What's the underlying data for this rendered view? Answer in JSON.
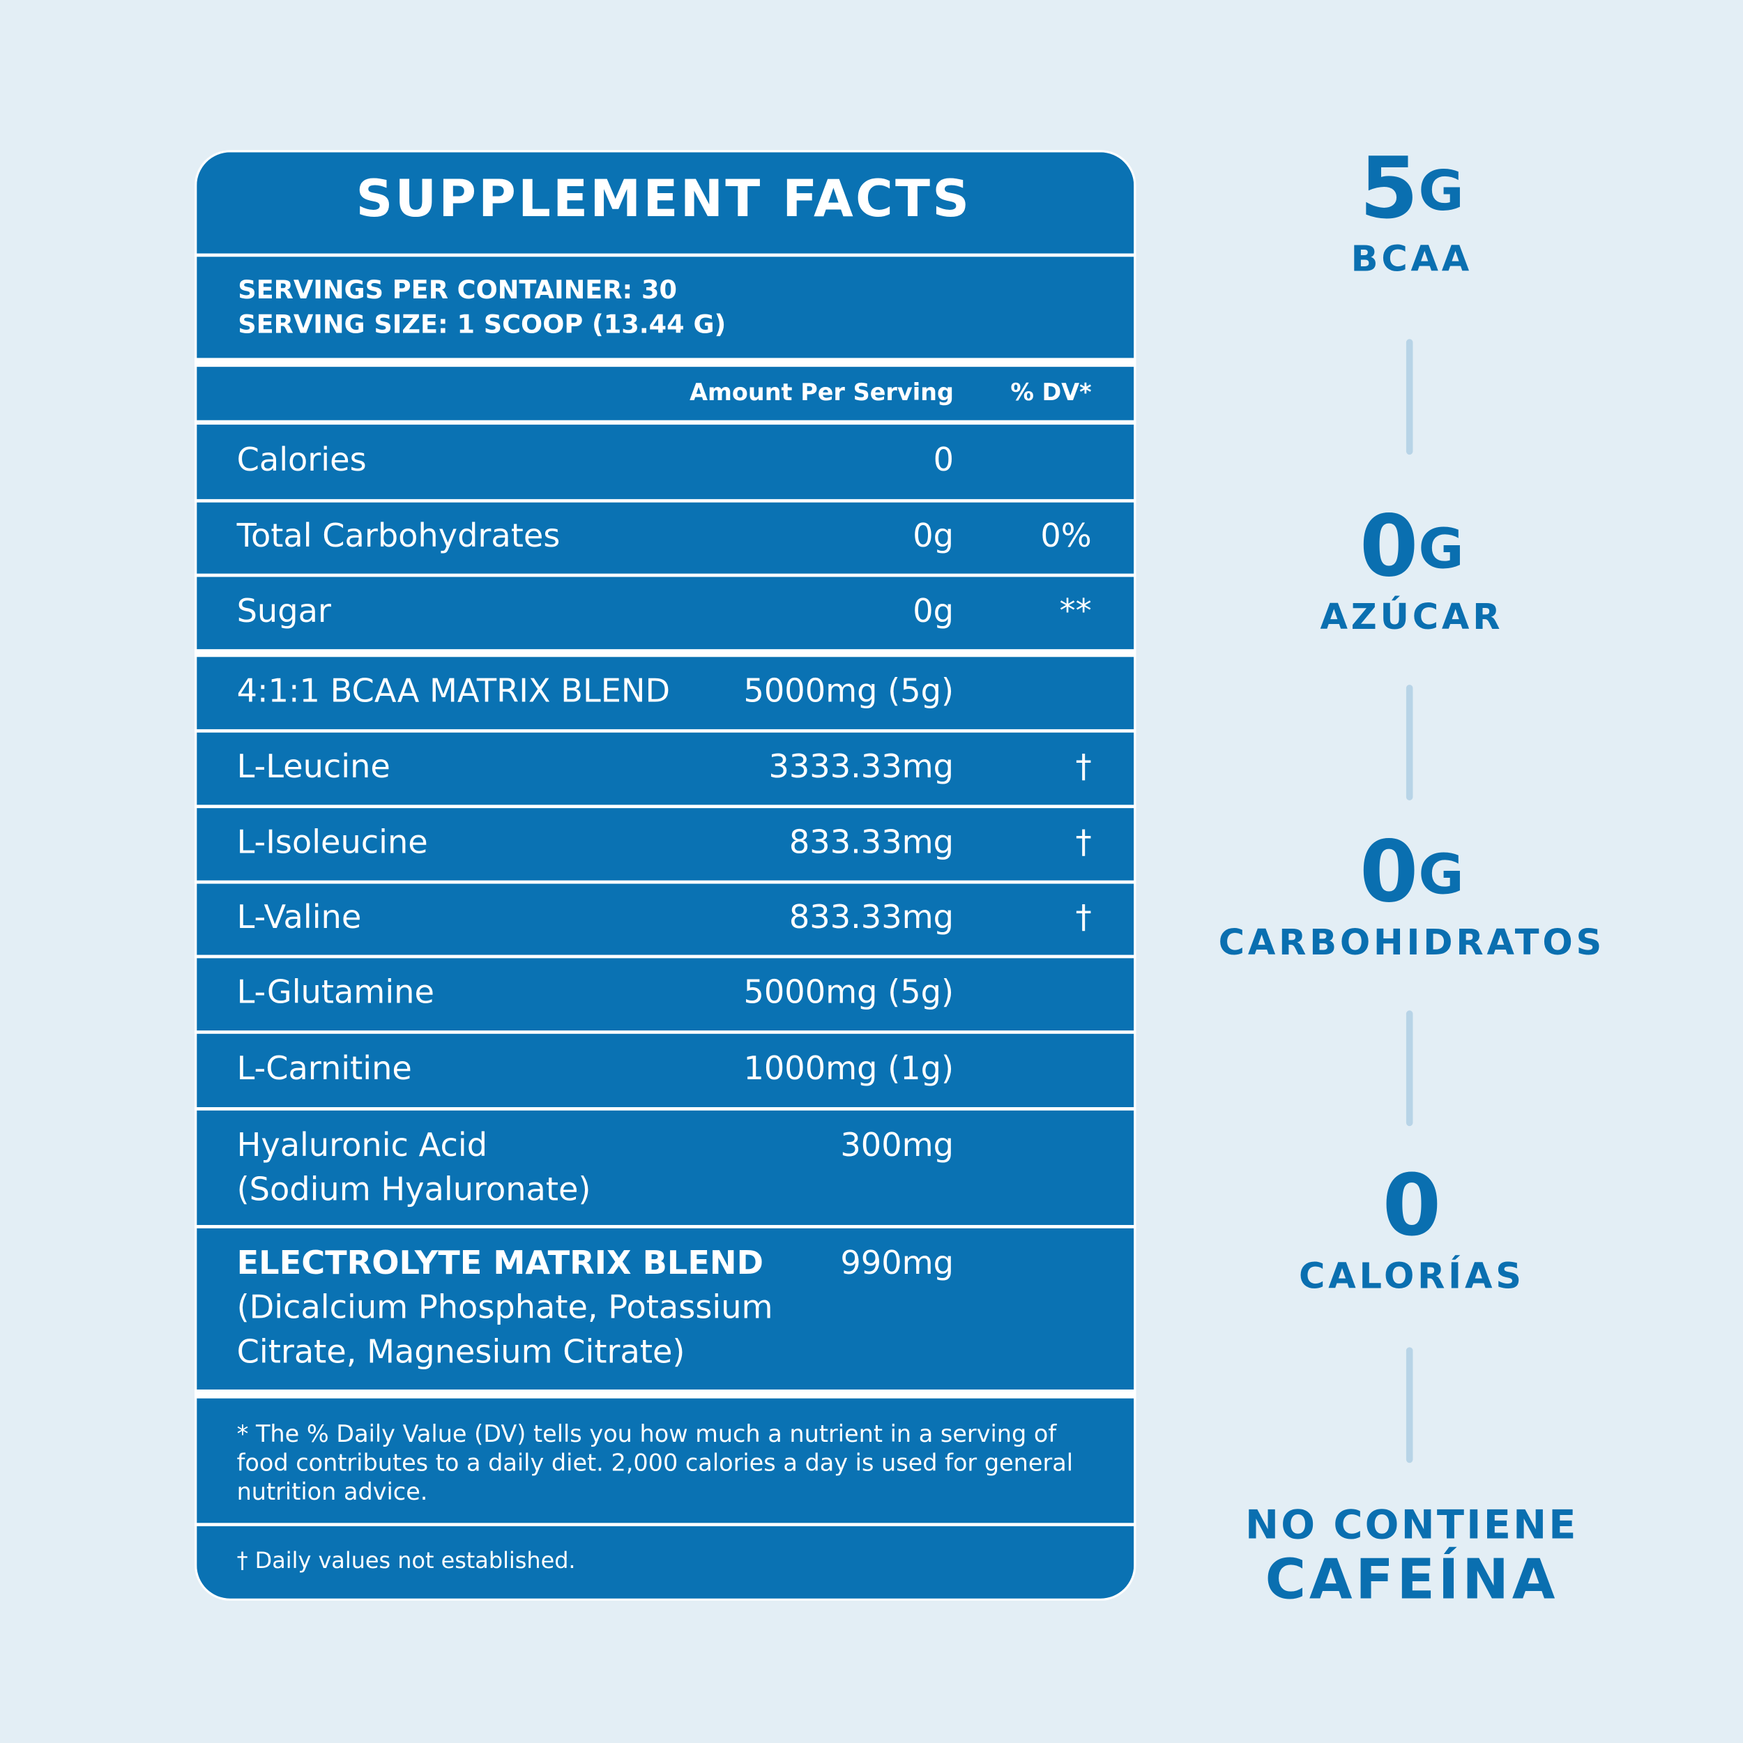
{
  "header": {
    "title": "SUPPLEMENT FACTS"
  },
  "servings": [
    "SERVINGS PER CONTAINER: 30",
    "SERVING SIZE:  1 SCOOP (13.44 G)"
  ],
  "table": {
    "columns": [
      "Amount Per Serving",
      "% DV*"
    ],
    "rows": [
      {
        "name": [
          "Calories"
        ],
        "amount": "0"
      },
      {
        "name": [
          "Total Carbohydrates"
        ],
        "amount": "0g",
        "dv": "0%"
      },
      {
        "name": [
          "Sugar"
        ],
        "amount": "0g",
        "dv": "**"
      },
      {
        "name": [
          "4:1:1 BCAA MATRIX BLEND"
        ],
        "amount": "5000mg (5g)"
      },
      {
        "name": [
          "L-Leucine"
        ],
        "amount": "3333.33mg",
        "dv": "†"
      },
      {
        "name": [
          "L-Isoleucine"
        ],
        "amount": "833.33mg",
        "dv": "†"
      },
      {
        "name": [
          "L-Valine"
        ],
        "amount": "833.33mg",
        "dv": "†"
      },
      {
        "name": [
          "L-Glutamine"
        ],
        "amount": "5000mg (5g)"
      },
      {
        "name": [
          "L-Carnitine"
        ],
        "amount": "1000mg (1g)"
      },
      {
        "name": [
          "Hyaluronic Acid",
          "(Sodium Hyaluronate)"
        ],
        "amount": "300mg"
      },
      {
        "name": [
          "ELECTROLYTE MATRIX BLEND",
          "(Dicalcium Phosphate, Potassium",
          "Citrate, Magnesium Citrate)"
        ],
        "amount": "990mg"
      }
    ]
  },
  "footnotes": {
    "dv": [
      "* The % Daily Value (DV) tells you how much a nutrient in a serving of",
      "food contributes to a daily diet. 2,000 calories a day is used for general",
      "nutrition advice."
    ],
    "dagger": "† Daily values not established."
  },
  "highlights": [
    {
      "value": "5",
      "unit": "G",
      "label": "BCAA"
    },
    {
      "value": "0",
      "unit": "G",
      "label": "AZÚCAR"
    },
    {
      "value": "0",
      "unit": "G",
      "label": "CARBOHIDRATOS"
    },
    {
      "value": "0",
      "label": "CALORÍAS"
    }
  ],
  "badge": [
    "NO CONTIENE",
    "CAFEÍNA"
  ]
}
